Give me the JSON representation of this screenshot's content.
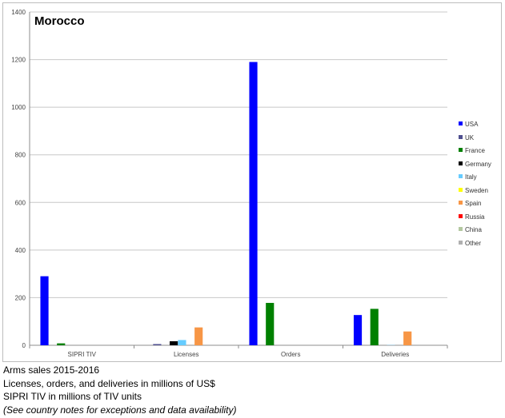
{
  "chart_data": {
    "type": "bar",
    "title": "Morocco",
    "categories": [
      "SIPRI TIV",
      "Licenses",
      "Orders",
      "Deliveries"
    ],
    "ylim": [
      0,
      1400
    ],
    "yticks": [
      0,
      200,
      400,
      600,
      800,
      1000,
      1200,
      1400
    ],
    "grid": true,
    "legend_position": "right",
    "series": [
      {
        "name": "USA",
        "color": "#0000ff",
        "values": [
          290,
          0,
          1190,
          127
        ]
      },
      {
        "name": "UK",
        "color": "#4f4f8f",
        "values": [
          0,
          5,
          0,
          0
        ]
      },
      {
        "name": "France",
        "color": "#008000",
        "values": [
          8,
          0,
          178,
          153
        ]
      },
      {
        "name": "Germany",
        "color": "#000000",
        "values": [
          0,
          17,
          0,
          0
        ]
      },
      {
        "name": "Italy",
        "color": "#66ccff",
        "values": [
          0,
          22,
          0,
          1
        ]
      },
      {
        "name": "Sweden",
        "color": "#ffff00",
        "values": [
          0,
          0,
          0,
          0
        ]
      },
      {
        "name": "Spain",
        "color": "#f79646",
        "values": [
          0,
          75,
          0,
          58
        ]
      },
      {
        "name": "Russia",
        "color": "#ff0000",
        "values": [
          0,
          0,
          0,
          0
        ]
      },
      {
        "name": "China",
        "color": "#b3c8a0",
        "values": [
          0,
          0,
          0,
          0
        ]
      },
      {
        "name": "Other",
        "color": "#b0b0b0",
        "values": [
          0,
          0,
          0,
          0
        ]
      }
    ]
  },
  "footnotes": {
    "line1": "Arms sales 2015-2016",
    "line2": "Licenses, orders, and deliveries in millions of US$",
    "line3": "SIPRI TIV in millions of TIV units",
    "line4": "(See country notes for exceptions and data availability)"
  }
}
